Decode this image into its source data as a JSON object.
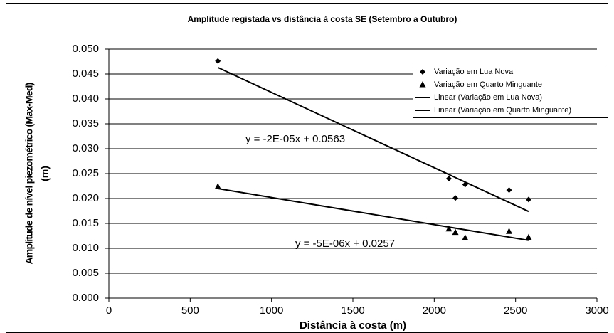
{
  "chart_data": {
    "type": "scatter",
    "title": "Amplitude registada vs distância à costa SE (Setembro a Outubro)",
    "x_label": "Distância à costa (m)",
    "y_label": [
      "Amplitude de nível piezométrico (Max-Med)",
      "(m)"
    ],
    "xlim": [
      0,
      3000
    ],
    "xticks": [
      0,
      500,
      1000,
      1500,
      2000,
      2500,
      3000
    ],
    "ylim": [
      0,
      0.05
    ],
    "yticks": [
      {
        "value": 0,
        "label": "0.000"
      },
      {
        "value": 0.005,
        "label": "0.005"
      },
      {
        "value": 0.01,
        "label": "0.010"
      },
      {
        "value": 0.015,
        "label": "0.015"
      },
      {
        "value": 0.02,
        "label": "0.020"
      },
      {
        "value": 0.025,
        "label": "0.025"
      },
      {
        "value": 0.03,
        "label": "0.030"
      },
      {
        "value": 0.035,
        "label": "0.035"
      },
      {
        "value": 0.04,
        "label": "0.040"
      },
      {
        "value": 0.045,
        "label": "0.045"
      },
      {
        "value": 0.05,
        "label": "0.050"
      }
    ],
    "grid": true,
    "legend": "right",
    "series": [
      {
        "name": "Variação em Lua Nova",
        "type": "scatter",
        "marker": "diamond",
        "color": "#000000",
        "x": [
          670,
          2090,
          2130,
          2190,
          2460,
          2580
        ],
        "values": [
          0.0476,
          0.024,
          0.0201,
          0.0228,
          0.0217,
          0.0198
        ]
      },
      {
        "name": "Variação em Quarto Minguante",
        "type": "scatter",
        "marker": "triangle",
        "color": "#000000",
        "x": [
          670,
          2090,
          2130,
          2190,
          2460,
          2580
        ],
        "values": [
          0.0224,
          0.0139,
          0.0132,
          0.0121,
          0.0134,
          0.0122
        ]
      },
      {
        "name": "Linear (Variação em Lua Nova)",
        "type": "line",
        "color": "#000000",
        "x": [
          670,
          2580
        ],
        "values": [
          0.0463,
          0.0174
        ]
      },
      {
        "name": "Linear (Variação em Quarto Minguante)",
        "type": "line",
        "color": "#000000",
        "x": [
          670,
          2580
        ],
        "values": [
          0.022,
          0.0116
        ]
      }
    ],
    "annotations": [
      "y = -2E-05x + 0.0563",
      "y = -5E-06x + 0.0257"
    ]
  }
}
